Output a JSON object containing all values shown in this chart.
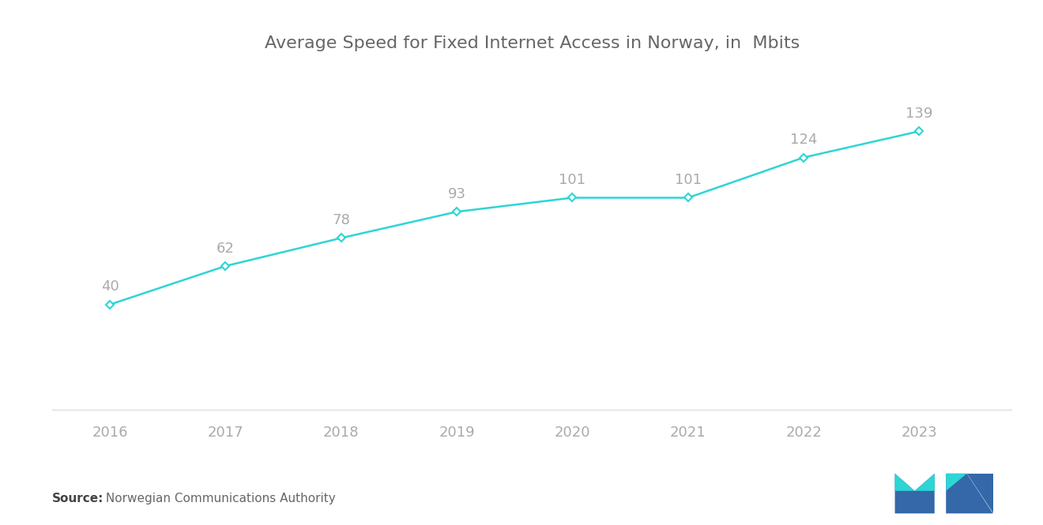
{
  "title": "Average Speed for Fixed Internet Access in Norway, in  Mbits",
  "years": [
    2016,
    2017,
    2018,
    2019,
    2020,
    2021,
    2022,
    2023
  ],
  "values": [
    40,
    62,
    78,
    93,
    101,
    101,
    124,
    139
  ],
  "line_color": "#2dd5d5",
  "marker_style": "D",
  "marker_size": 5,
  "marker_facecolor": "white",
  "marker_edgecolor": "#2dd5d5",
  "marker_edgewidth": 1.5,
  "label_color": "#aaaaaa",
  "label_fontsize": 13,
  "title_fontsize": 16,
  "title_color": "#666666",
  "axis_label_color": "#aaaaaa",
  "axis_label_fontsize": 13,
  "source_bold": "Source:",
  "source_text": " Norwegian Communications Authority",
  "source_fontsize": 11,
  "background_color": "#ffffff",
  "ylim": [
    -20,
    175
  ],
  "xlim": [
    2015.5,
    2023.8
  ],
  "logo_dark": "#3468a8",
  "logo_teal": "#2dd5d5",
  "separator_color": "#dddddd",
  "separator_y": -20
}
